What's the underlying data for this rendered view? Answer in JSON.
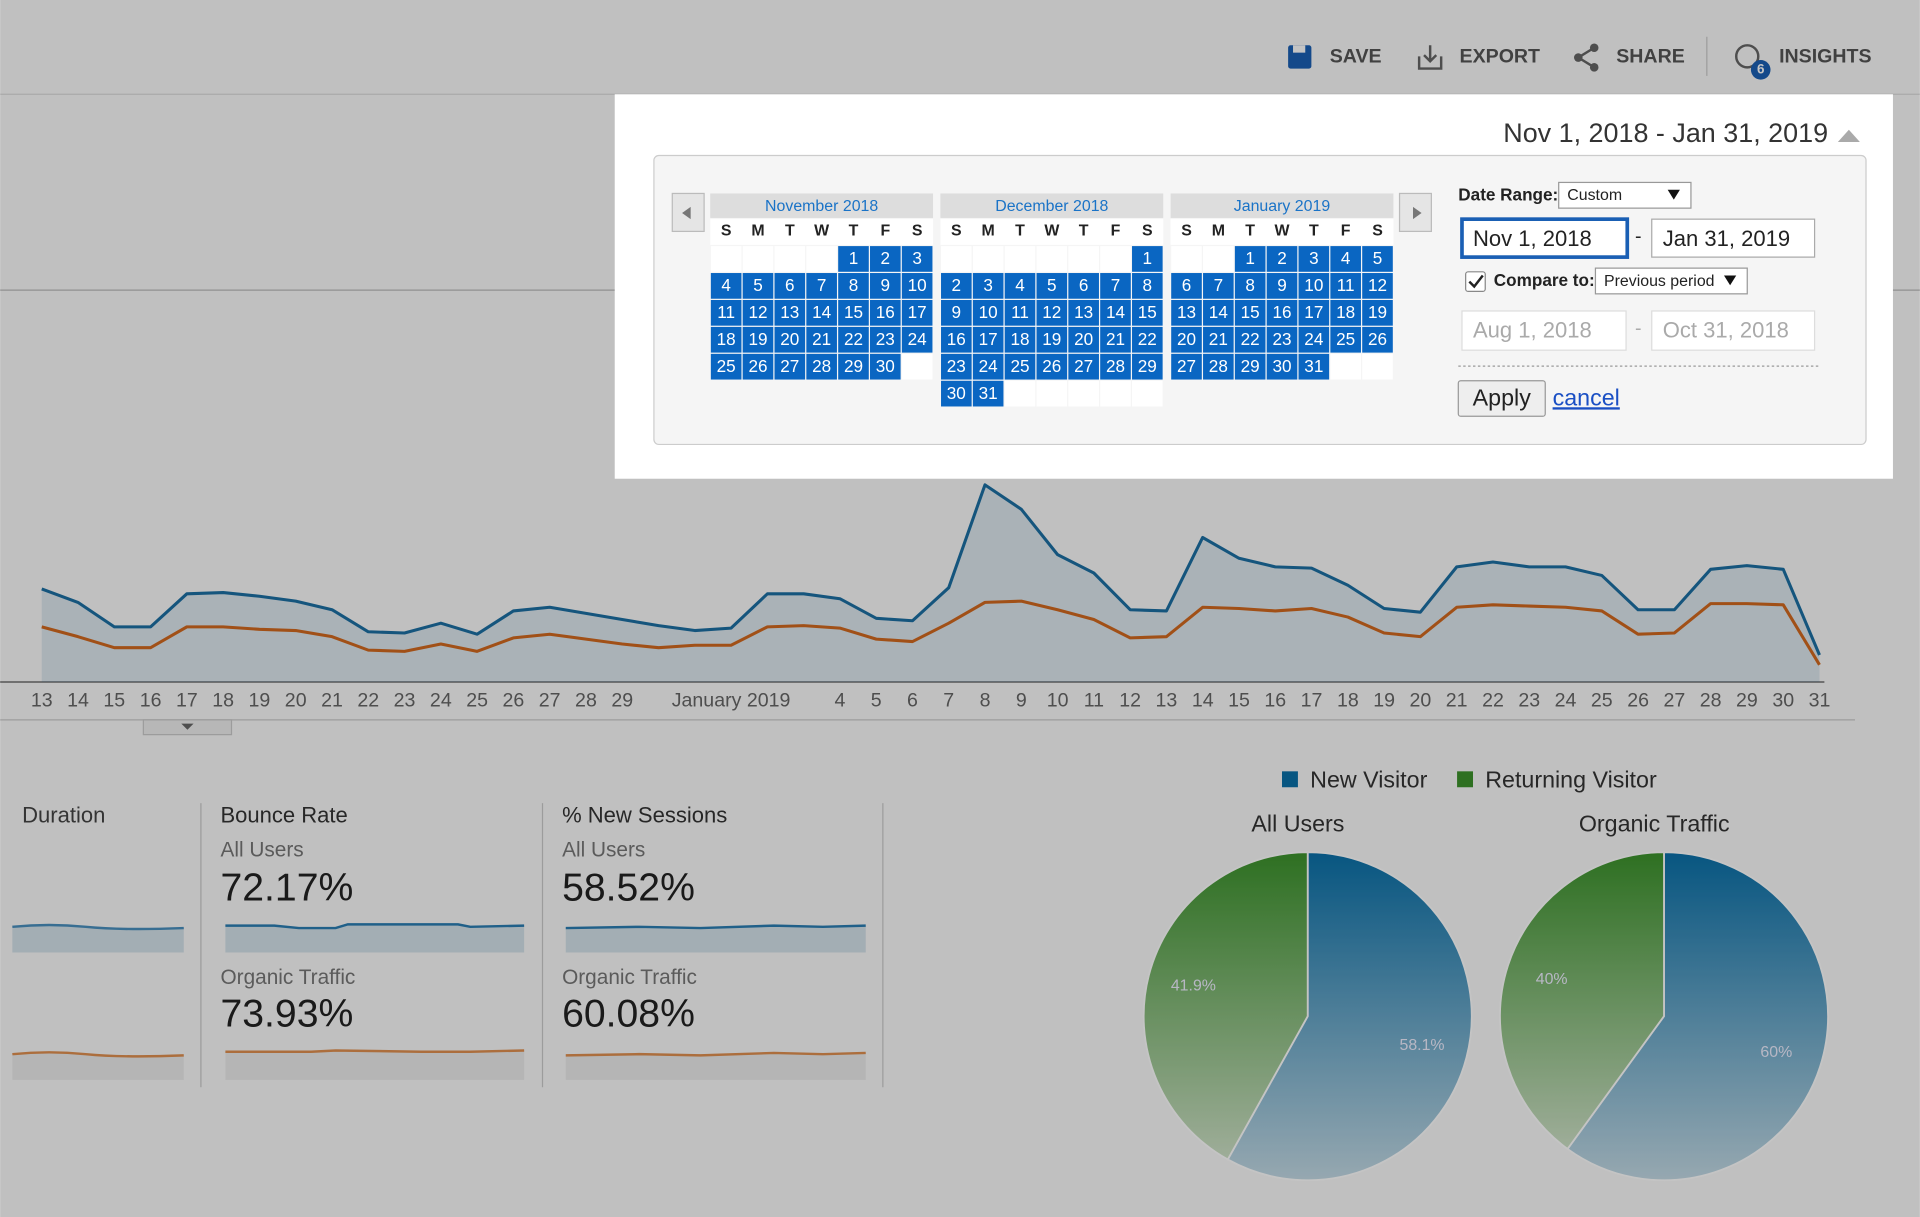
{
  "toolbar": {
    "buttons": [
      "SAVE",
      "EXPORT",
      "SHARE",
      "INSIGHTS"
    ],
    "insights_badge": "6"
  },
  "date_picker": {
    "range_label": "Nov 1, 2018 - Jan 31, 2019",
    "weekdays": [
      "S",
      "M",
      "T",
      "W",
      "T",
      "F",
      "S"
    ],
    "months": [
      {
        "name": "November 2018",
        "days": [
          null,
          null,
          null,
          null,
          1,
          2,
          3,
          4,
          5,
          6,
          7,
          8,
          9,
          10,
          11,
          12,
          13,
          14,
          15,
          16,
          17,
          18,
          19,
          20,
          21,
          22,
          23,
          24,
          25,
          26,
          27,
          28,
          29,
          30
        ]
      },
      {
        "name": "December 2018",
        "days": [
          null,
          null,
          null,
          null,
          null,
          null,
          1,
          2,
          3,
          4,
          5,
          6,
          7,
          8,
          9,
          10,
          11,
          12,
          13,
          14,
          15,
          16,
          17,
          18,
          19,
          20,
          21,
          22,
          23,
          24,
          25,
          26,
          27,
          28,
          29,
          30,
          31
        ]
      },
      {
        "name": "January 2019",
        "days": [
          null,
          null,
          1,
          2,
          3,
          4,
          5,
          6,
          7,
          8,
          9,
          10,
          11,
          12,
          13,
          14,
          15,
          16,
          17,
          18,
          19,
          20,
          21,
          22,
          23,
          24,
          25,
          26,
          27,
          28,
          29,
          30,
          31
        ]
      }
    ],
    "date_range_label": "Date Range:",
    "date_range_option": "Custom",
    "start": "Nov 1, 2018",
    "separator": "-",
    "end": "Jan 31, 2019",
    "compare_checked": true,
    "compare_label": "Compare to:",
    "compare_option": "Previous period",
    "compare_start": "Aug 1, 2018",
    "compare_end": "Oct 31, 2018",
    "apply": "Apply",
    "cancel": "cancel"
  },
  "chart_data": [
    {
      "type": "line",
      "categories": [
        "13",
        "14",
        "15",
        "16",
        "17",
        "18",
        "19",
        "20",
        "21",
        "22",
        "23",
        "24",
        "25",
        "26",
        "27",
        "28",
        "29",
        null,
        null,
        "January 2019",
        null,
        null,
        "4",
        "5",
        "6",
        "7",
        "8",
        "9",
        "10",
        "11",
        "12",
        "13",
        "14",
        "15",
        "16",
        "17",
        "18",
        "19",
        "20",
        "21",
        "22",
        "23",
        "24",
        "25",
        "26",
        "27",
        "28",
        "29",
        "30",
        "31"
      ],
      "ylim": [
        0,
        100
      ],
      "series": [
        {
          "color": "#1c6fa3",
          "values": [
            38,
            32.5,
            22.5,
            22.5,
            36,
            36.5,
            35,
            33,
            29.5,
            20.5,
            20,
            24,
            19.5,
            29,
            30.5,
            28,
            25.5,
            23,
            21,
            22,
            36,
            36,
            34,
            26,
            25,
            38.5,
            80.5,
            70.5,
            52,
            44.5,
            29.5,
            29,
            59,
            50.5,
            47,
            46.5,
            39.5,
            30,
            28.5,
            47,
            49,
            47,
            47,
            43.5,
            29.5,
            29.5,
            46,
            47.5,
            46,
            11
          ]
        },
        {
          "color": "#d2691e",
          "values": [
            22.5,
            18.5,
            14,
            14,
            22.5,
            22.5,
            21.5,
            21,
            18.5,
            13,
            12.5,
            15.5,
            12.5,
            18,
            19.5,
            17.5,
            15.5,
            14,
            15,
            15,
            22.5,
            23,
            22,
            17.5,
            16.5,
            24,
            32.5,
            33,
            29.5,
            25.5,
            18,
            18.5,
            30.5,
            30,
            29,
            30,
            26.5,
            20,
            18.5,
            30.5,
            31.5,
            31,
            30.5,
            29,
            19.5,
            20,
            32,
            32,
            31.5,
            7
          ]
        }
      ]
    },
    {
      "type": "pie",
      "title": "All Users",
      "categories": [
        "New Visitor",
        "Returning Visitor"
      ],
      "colors": [
        "#0a70a8",
        "#3c922c"
      ],
      "values": [
        58.1,
        41.9
      ],
      "value_labels": [
        "58.1%",
        "41.9%"
      ]
    },
    {
      "type": "pie",
      "title": "Organic Traffic",
      "categories": [
        "New Visitor",
        "Returning Visitor"
      ],
      "colors": [
        "#0a70a8",
        "#3c922c"
      ],
      "values": [
        60,
        40
      ],
      "value_labels": [
        "60%",
        "40%"
      ]
    }
  ],
  "metrics": [
    {
      "title": "Duration"
    },
    {
      "title": "Bounce Rate",
      "rows": [
        {
          "segment": "All Users",
          "value": "72.17%"
        },
        {
          "segment": "Organic Traffic",
          "value": "73.93%"
        }
      ]
    },
    {
      "title": "% New Sessions",
      "rows": [
        {
          "segment": "All Users",
          "value": "58.52%"
        },
        {
          "segment": "Organic Traffic",
          "value": "60.08%"
        }
      ]
    }
  ]
}
